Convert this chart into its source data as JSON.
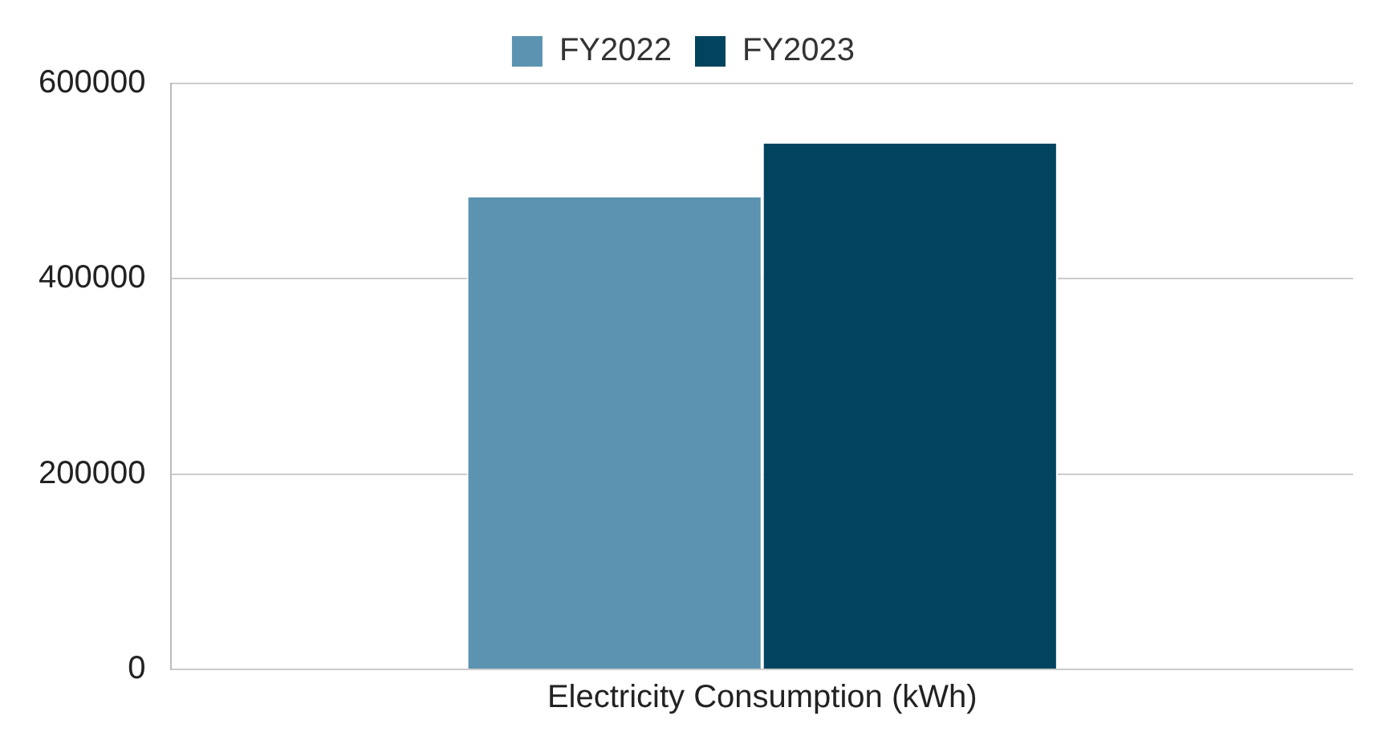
{
  "chart_data": {
    "type": "bar",
    "categories": [
      "Electricity Consumption (kWh)"
    ],
    "series": [
      {
        "name": "FY2022",
        "color": "#5b93b0",
        "values": [
          485000
        ]
      },
      {
        "name": "FY2023",
        "color": "#02445f",
        "values": [
          540000
        ]
      }
    ],
    "ylim": [
      0,
      600000
    ],
    "yticks": [
      0,
      200000,
      400000,
      600000
    ],
    "grid": "y",
    "legend": "top"
  }
}
